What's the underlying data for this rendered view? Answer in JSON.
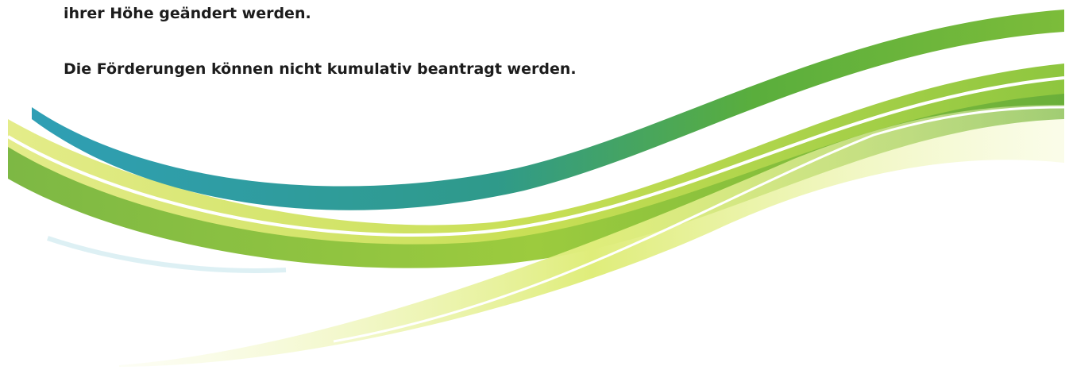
{
  "document": {
    "paragraphs": [
      "ihrer Höhe geändert werden.",
      "Die Förderungen können nicht kumulativ beantragt werden."
    ]
  }
}
